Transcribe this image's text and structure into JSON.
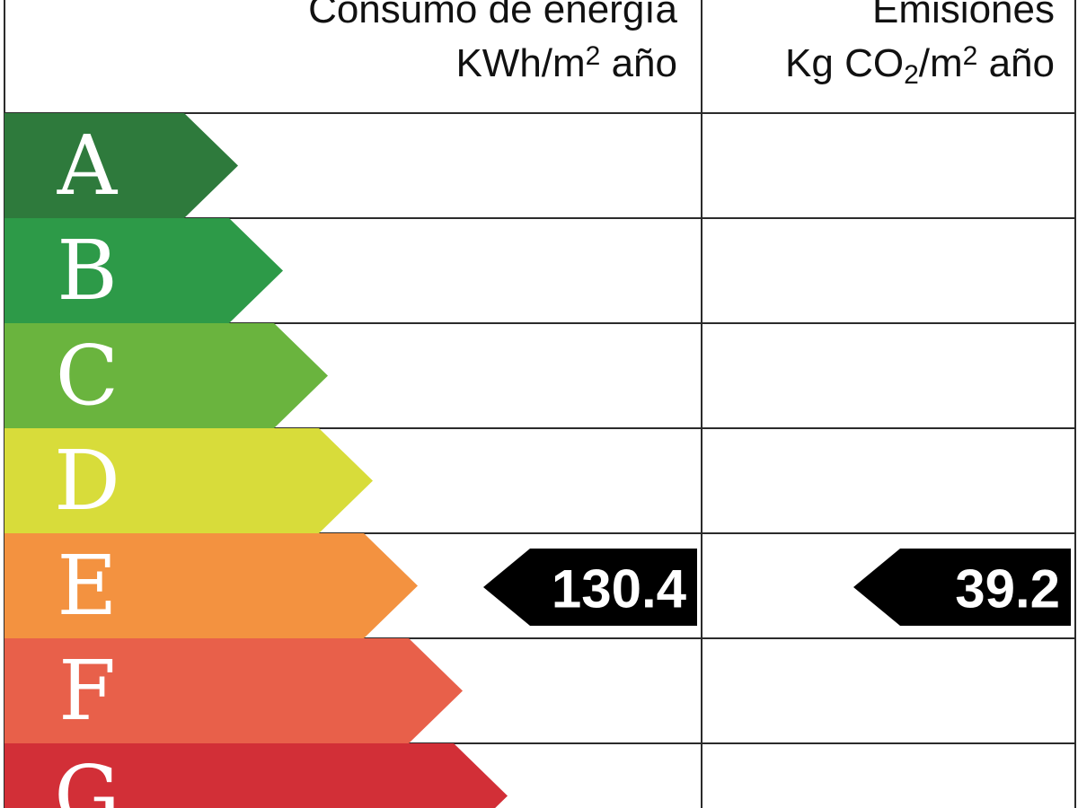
{
  "header": {
    "energy": {
      "title": "Consumo de energía",
      "unit_pre": "KWh/m",
      "unit_exp": "2",
      "unit_post": " año"
    },
    "emissions": {
      "title": "Emisiones",
      "unit_pre": "Kg CO",
      "unit_sub": "2",
      "unit_mid": "/m",
      "unit_exp": "2",
      "unit_post": " año"
    }
  },
  "chart_data": {
    "type": "bar",
    "categories": [
      "A",
      "B",
      "C",
      "D",
      "E",
      "F",
      "G"
    ],
    "colors": [
      "#2e7a3c",
      "#2d9a48",
      "#6ab43e",
      "#d8dc3a",
      "#f39240",
      "#e8604a",
      "#d22f37"
    ],
    "ratings": [
      {
        "label": "130.4",
        "value": 130.4,
        "class": "E"
      },
      {
        "label": "39.2",
        "value": 39.2,
        "class": "E"
      }
    ]
  }
}
